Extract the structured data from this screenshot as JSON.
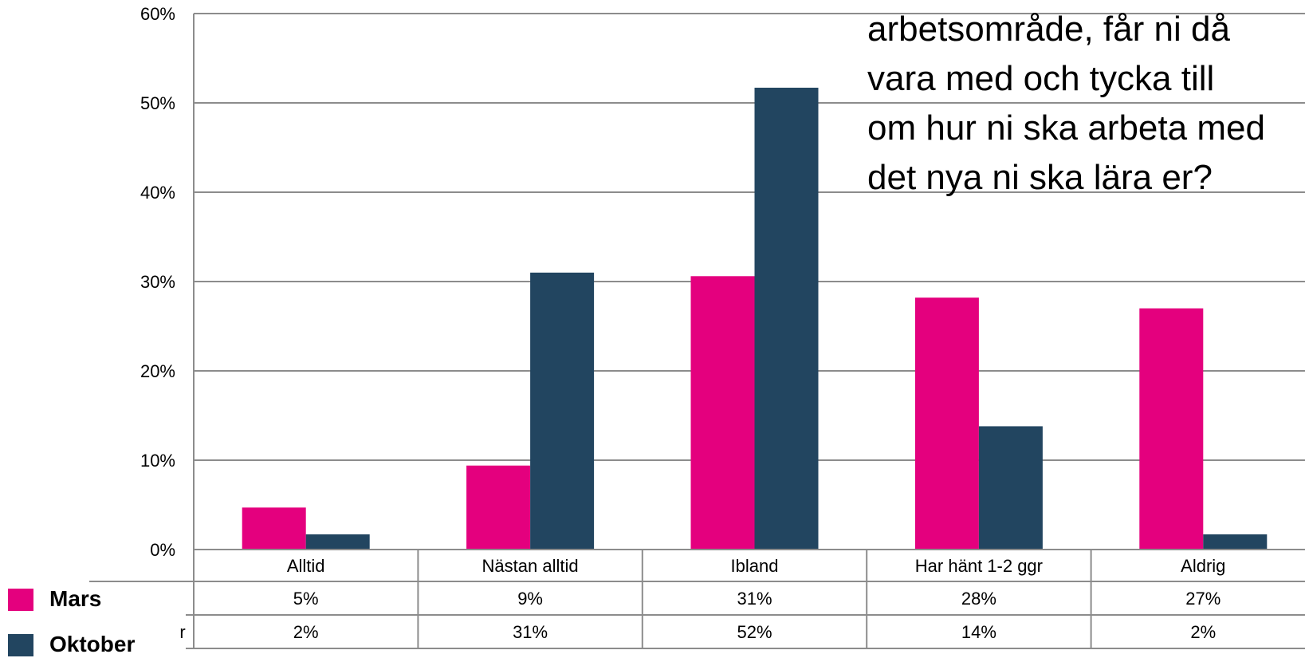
{
  "overlay_text_lines": [
    "arbetsområde, får ni då",
    "vara med och tycka till",
    "om hur ni ska arbeta med",
    "det nya ni ska lära er?"
  ],
  "legend": [
    {
      "label": "Mars",
      "color": "#e4007e"
    },
    {
      "label": "Oktober",
      "color": "#224560"
    }
  ],
  "table_row_prefix": "r",
  "chart_data": {
    "type": "bar",
    "categories": [
      "Alltid",
      "Nästan alltid",
      "Ibland",
      "Har hänt 1-2 ggr",
      "Aldrig"
    ],
    "series": [
      {
        "name": "Mars",
        "values": [
          4.7,
          9.4,
          30.6,
          28.2,
          27.0
        ],
        "labels": [
          "5%",
          "9%",
          "31%",
          "28%",
          "27%"
        ]
      },
      {
        "name": "Oktober",
        "values": [
          1.7,
          31.0,
          51.7,
          13.8,
          1.7
        ],
        "labels": [
          "2%",
          "31%",
          "52%",
          "14%",
          "2%"
        ]
      }
    ],
    "ylim": [
      0,
      60
    ],
    "yticks": [
      0,
      10,
      20,
      30,
      40,
      50,
      60
    ],
    "ytick_labels": [
      "0%",
      "10%",
      "20%",
      "30%",
      "40%",
      "50%",
      "60%"
    ],
    "grid": true,
    "data_table": true
  }
}
